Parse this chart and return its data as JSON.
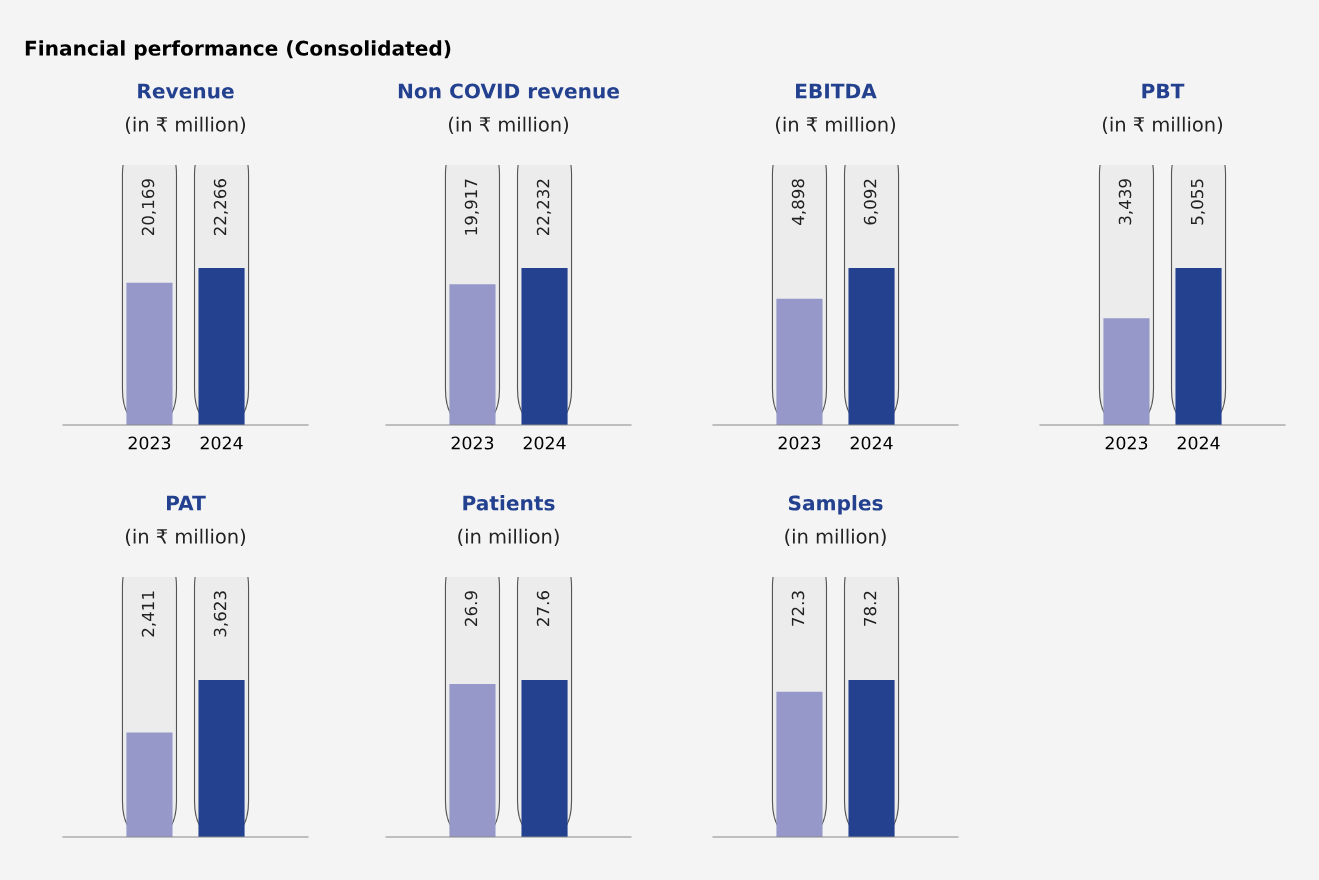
{
  "chart_data": [
    {
      "type": "bar",
      "title": "Revenue",
      "subtitle": "(in ₹ million)",
      "annotations": [
        "Financial performance (Consolidated)"
      ],
      "categories": [
        "2023",
        "2024"
      ],
      "values": [
        20169,
        22266
      ],
      "value_labels": [
        "20,169",
        "22,266"
      ],
      "colors": [
        "#9598c8",
        "#23418f"
      ]
    },
    {
      "type": "bar",
      "title": "Non COVID revenue",
      "subtitle": "(in ₹ million)",
      "categories": [
        "2023",
        "2024"
      ],
      "values": [
        19917,
        22232
      ],
      "value_labels": [
        "19,917",
        "22,232"
      ],
      "colors": [
        "#9598c8",
        "#23418f"
      ]
    },
    {
      "type": "bar",
      "title": "EBITDA",
      "subtitle": "(in ₹ million)",
      "categories": [
        "2023",
        "2024"
      ],
      "values": [
        4898,
        6092
      ],
      "value_labels": [
        "4,898",
        "6,092"
      ],
      "colors": [
        "#9598c8",
        "#23418f"
      ]
    },
    {
      "type": "bar",
      "title": "PBT",
      "subtitle": "(in ₹ million)",
      "categories": [
        "2023",
        "2024"
      ],
      "values": [
        3439,
        5055
      ],
      "value_labels": [
        "3,439",
        "5,055"
      ],
      "colors": [
        "#9598c8",
        "#23418f"
      ]
    },
    {
      "type": "bar",
      "title": "PAT",
      "subtitle": "(in ₹ million)",
      "categories": [
        "2023",
        "2024"
      ],
      "values": [
        2411,
        3623
      ],
      "value_labels": [
        "2,411",
        "3,623"
      ],
      "colors": [
        "#9598c8",
        "#23418f"
      ],
      "tick_labels": false
    },
    {
      "type": "bar",
      "title": "Patients",
      "subtitle": "(in million)",
      "categories": [
        "2023",
        "2024"
      ],
      "values": [
        26.9,
        27.6
      ],
      "value_labels": [
        "26.9",
        "27.6"
      ],
      "colors": [
        "#9598c8",
        "#23418f"
      ],
      "tick_labels": false
    },
    {
      "type": "bar",
      "title": "Samples",
      "subtitle": "(in million)",
      "categories": [
        "2023",
        "2024"
      ],
      "values": [
        72.3,
        78.2
      ],
      "value_labels": [
        "72.3",
        "78.2"
      ],
      "colors": [
        "#9598c8",
        "#23418f"
      ],
      "tick_labels": false
    }
  ]
}
